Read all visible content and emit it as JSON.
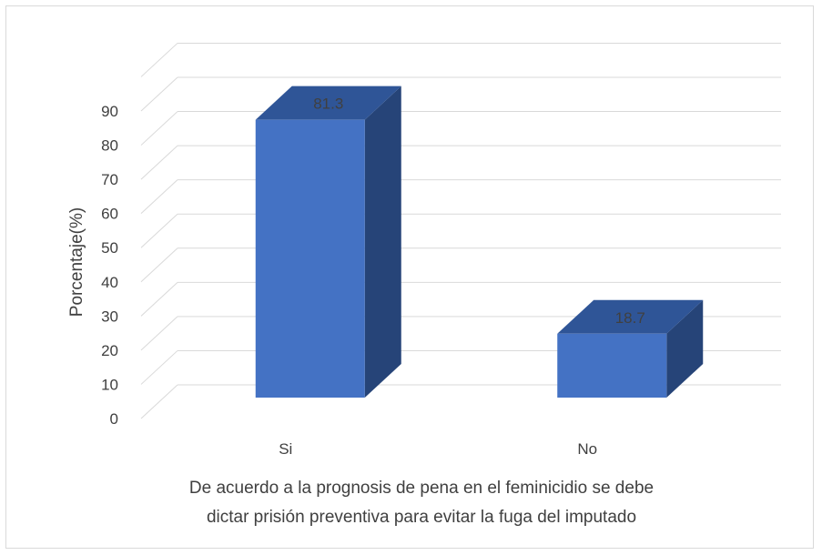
{
  "chart_data": {
    "type": "bar",
    "style": "3d-column",
    "categories": [
      "Si",
      "No"
    ],
    "values": [
      81.3,
      18.7
    ],
    "data_labels": [
      "81.3",
      "18.7"
    ],
    "title": "",
    "ylabel": "Porcentaje(%)",
    "xlabel_lines": [
      "De acuerdo a la prognosis de pena en el feminicidio se debe",
      "dictar prisión preventiva para evitar la fuga del imputado"
    ],
    "ylim": [
      0,
      90
    ],
    "yticks": [
      0,
      10,
      20,
      30,
      40,
      50,
      60,
      70,
      80,
      90
    ],
    "grid": true,
    "legend": "none",
    "colors": {
      "bar_front": "#4472c4",
      "bar_top": "#2f5597",
      "bar_side": "#264478",
      "gridline": "#d9d9d9",
      "text": "#404040"
    }
  }
}
